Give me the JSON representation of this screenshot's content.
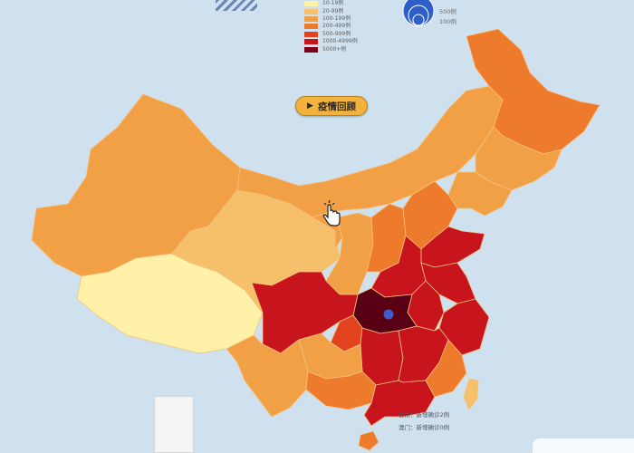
{
  "legend": {
    "items": [
      {
        "label": "10-19例",
        "color": "#fff2a8"
      },
      {
        "label": "20-99例",
        "color": "#f6bf6a"
      },
      {
        "label": "100-199例",
        "color": "#f2a046"
      },
      {
        "label": "200-499例",
        "color": "#ee7a2c"
      },
      {
        "label": "500-999例",
        "color": "#e2421e"
      },
      {
        "label": "1000-4999例",
        "color": "#c8141c"
      },
      {
        "label": "5000+例",
        "color": "#7d0018"
      }
    ]
  },
  "bubble_legend": {
    "labels": [
      "500例",
      "100例"
    ],
    "color": "#2e5fc9"
  },
  "replay_button": {
    "label": "疫情回顾",
    "icon": "play-icon"
  },
  "notes": {
    "hongkong": "香港：新增确诊2例",
    "macau": "澳门：新增确诊0例"
  },
  "region_colors": {
    "light_yellow": "#fff2a8",
    "pale_orange": "#f6bf6a",
    "orange": "#f2a046",
    "dark_orange": "#ee7a2c",
    "red_orange": "#e2421e",
    "red": "#c8141c",
    "dark_red": "#7d0018",
    "hubei": "#5a0014"
  },
  "marker_color": "#3f5cc8"
}
